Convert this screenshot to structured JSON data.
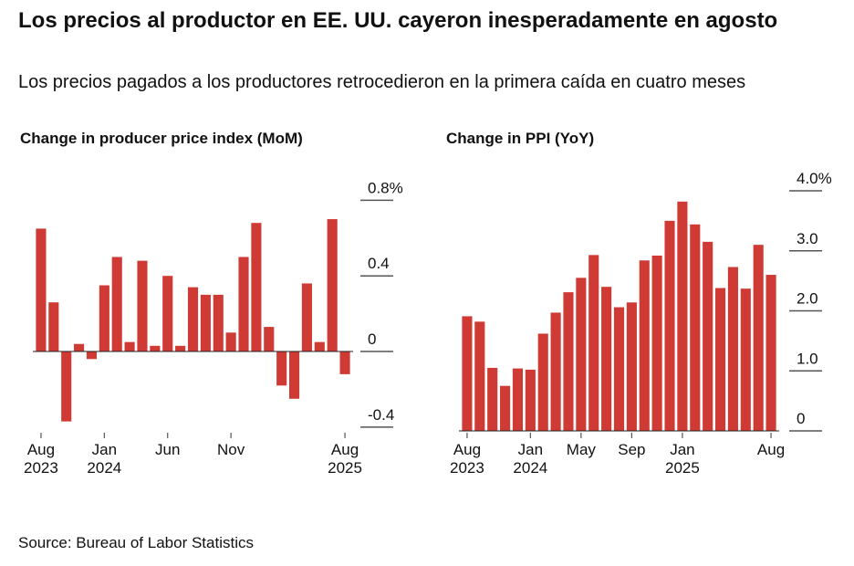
{
  "title": "Los precios al productor en EE. UU. cayeron inesperadamente en agosto",
  "subtitle": "Los precios pagados a los productores retrocedieron en la primera caída en cuatro meses",
  "source": "Source: Bureau of Labor Statistics",
  "chart_data": [
    {
      "type": "bar",
      "title": "Change in producer price index (MoM)",
      "color": "#d03a35",
      "categories": [
        "Aug 2023",
        null,
        null,
        null,
        null,
        "Jan 2024",
        null,
        null,
        null,
        null,
        "Jun",
        null,
        null,
        null,
        null,
        "Nov",
        null,
        null,
        null,
        null,
        null,
        null,
        null,
        null,
        "Aug 2025"
      ],
      "values": [
        0.65,
        0.26,
        -0.37,
        0.04,
        -0.04,
        0.35,
        0.5,
        0.05,
        0.48,
        0.03,
        0.4,
        0.03,
        0.34,
        0.3,
        0.3,
        0.1,
        0.5,
        0.68,
        0.13,
        -0.18,
        -0.25,
        0.36,
        0.05,
        0.7,
        -0.12
      ],
      "ylim": [
        -0.42,
        0.85
      ],
      "yticks": [
        {
          "value": 0.8,
          "label": "0.8%"
        },
        0.4,
        0,
        -0.4
      ]
    },
    {
      "type": "bar",
      "title": "Change in PPI (YoY)",
      "color": "#d03a35",
      "categories": [
        "Aug 2023",
        null,
        null,
        null,
        null,
        "Jan 2024",
        null,
        null,
        null,
        "May",
        null,
        null,
        null,
        "Sep",
        null,
        null,
        null,
        "Jan 2025",
        null,
        null,
        null,
        null,
        null,
        null,
        "Aug"
      ],
      "values": [
        1.91,
        1.82,
        1.05,
        0.75,
        1.04,
        1.02,
        1.62,
        1.97,
        2.31,
        2.55,
        2.93,
        2.4,
        2.06,
        2.14,
        2.84,
        2.92,
        3.5,
        3.82,
        3.44,
        3.15,
        2.38,
        2.73,
        2.37,
        3.1,
        2.6
      ],
      "ylim": [
        0,
        4.0
      ],
      "yticks": [
        {
          "value": 4,
          "label": "4.0%"
        },
        {
          "value": 3,
          "label": "3.0"
        },
        {
          "value": 2,
          "label": "2.0"
        },
        {
          "value": 1,
          "label": "1.0"
        },
        0
      ]
    }
  ]
}
